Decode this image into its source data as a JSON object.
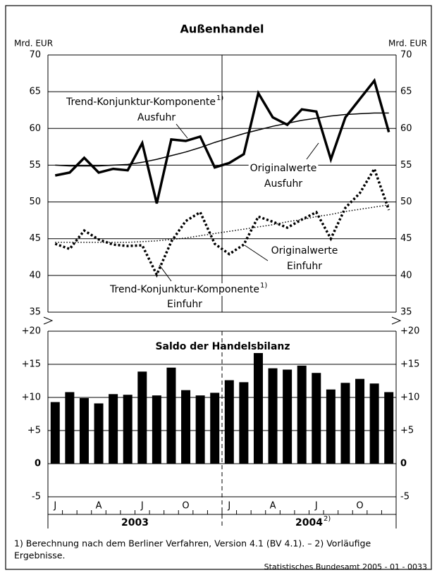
{
  "chart_data": [
    {
      "type": "line",
      "title": "Außenhandel",
      "y_label": "Mrd. EUR",
      "y2_label": "Mrd. EUR",
      "ylim": [
        35,
        70
      ],
      "yticks": [
        35,
        40,
        45,
        50,
        55,
        60,
        65,
        70
      ],
      "y2lim": [
        35,
        70
      ],
      "y2ticks": [
        35,
        40,
        45,
        50,
        55,
        60,
        65,
        70
      ],
      "grid": true,
      "series": [
        {
          "label": [
            "Originalwerte",
            "Ausfuhr"
          ],
          "color": "#000000",
          "width": 3.5,
          "dash": "solid",
          "values": [
            53.6,
            54.0,
            56.0,
            54.0,
            54.5,
            54.3,
            58.0,
            49.8,
            58.5,
            58.3,
            58.9,
            54.7,
            55.3,
            56.5,
            64.8,
            61.5,
            60.5,
            62.6,
            62.3,
            55.8,
            61.5,
            64.0,
            66.5,
            59.5
          ]
        },
        {
          "label": [
            "Trend-Konjunktur-Komponente",
            "Ausfuhr"
          ],
          "note": "1)",
          "color": "#000000",
          "width": 1.5,
          "dash": "solid",
          "values": [
            55.0,
            54.9,
            54.9,
            54.9,
            55.0,
            55.1,
            55.4,
            55.8,
            56.3,
            56.8,
            57.4,
            58.1,
            58.7,
            59.3,
            59.8,
            60.3,
            60.7,
            61.1,
            61.4,
            61.7,
            61.9,
            62.0,
            62.1,
            62.1
          ]
        },
        {
          "label": [
            "Originalwerte",
            "Einfuhr"
          ],
          "color": "#000000",
          "width": 3.5,
          "dash": "dotted",
          "values": [
            44.3,
            43.6,
            46.1,
            44.9,
            44.2,
            44.0,
            44.1,
            40.1,
            44.6,
            47.4,
            48.6,
            44.3,
            42.9,
            44.2,
            48.0,
            47.3,
            46.5,
            47.6,
            48.6,
            45.0,
            49.2,
            51.2,
            54.5,
            48.9
          ]
        },
        {
          "label": [
            "Trend-Konjunktur-Komponente",
            "Einfuhr"
          ],
          "note": "1)",
          "color": "#000000",
          "width": 1.5,
          "dash": "dotted",
          "values": [
            44.5,
            44.5,
            44.5,
            44.5,
            44.5,
            44.5,
            44.6,
            44.7,
            44.9,
            45.1,
            45.4,
            45.7,
            46.0,
            46.3,
            46.6,
            46.9,
            47.3,
            47.6,
            48.0,
            48.3,
            48.7,
            49.0,
            49.3,
            49.6
          ]
        }
      ]
    },
    {
      "type": "bar",
      "title": "Saldo der Handelsbilanz",
      "color": "#000000",
      "categories": [
        "J",
        null,
        null,
        "A",
        null,
        null,
        "J",
        null,
        null,
        "O",
        null,
        null,
        "J",
        null,
        null,
        "A",
        null,
        null,
        "J",
        null,
        null,
        "O",
        null,
        null
      ],
      "years": [
        {
          "label": "2003"
        },
        {
          "label": "2004",
          "note": "2)"
        }
      ],
      "values": [
        9.3,
        10.8,
        9.9,
        9.1,
        10.5,
        10.4,
        13.9,
        10.3,
        14.5,
        11.1,
        10.3,
        10.7,
        12.6,
        12.3,
        16.7,
        14.4,
        14.2,
        14.8,
        13.7,
        11.2,
        12.2,
        12.8,
        12.1,
        10.8
      ],
      "ylim": [
        -5,
        20
      ],
      "yticks": [
        -5,
        0,
        {
          "value": 5,
          "label": "+5"
        },
        {
          "value": 10,
          "label": "+10"
        },
        {
          "value": 15,
          "label": "+15"
        },
        {
          "value": 20,
          "label": "+20"
        }
      ],
      "y2lim": [
        -5,
        20
      ],
      "y2ticks": [
        -5,
        0,
        {
          "value": 5,
          "label": "+5"
        },
        {
          "value": 10,
          "label": "+10"
        },
        {
          "value": 15,
          "label": "+15"
        },
        {
          "value": 20,
          "label": "+20"
        }
      ],
      "grid": true
    }
  ],
  "footnote": [
    "1) Berechnung nach dem Berliner Verfahren, Version 4.1 (BV 4.1). – 2) Vorläufige",
    "Ergebnisse."
  ],
  "source": "Statistisches Bundesamt 2005 - 01 - 0033"
}
